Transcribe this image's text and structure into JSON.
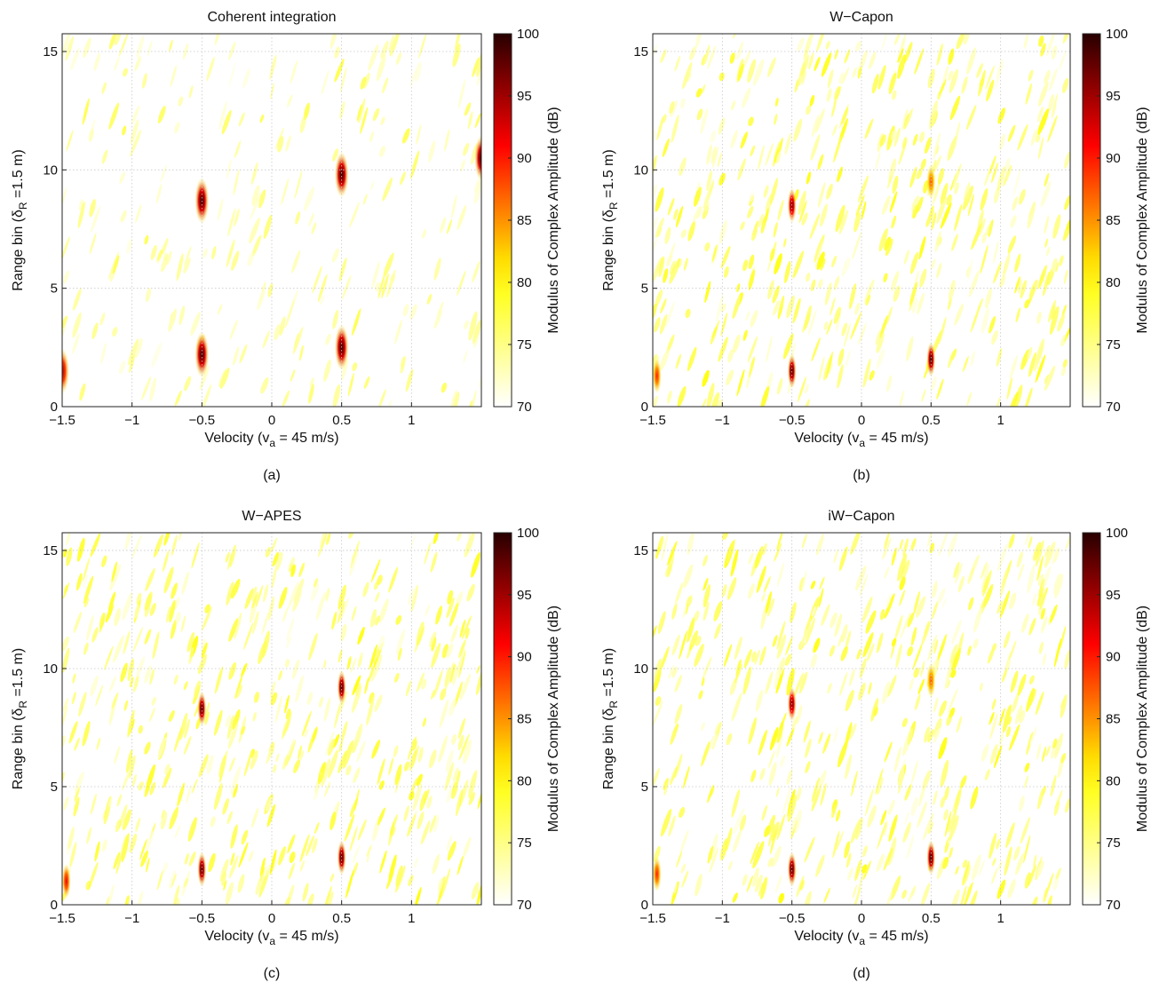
{
  "chart_data": [
    {
      "type": "heatmap",
      "panel_label": "(a)",
      "title": "Coherent integration",
      "xlabel": "Velocity (v",
      "xlabel_sub": "a",
      "xlabel_tail": " = 45 m/s)",
      "ylabel": "Range bin (δ",
      "ylabel_sub": "R",
      "ylabel_tail": " =1.5 m)",
      "xlim": [
        -1.5,
        1.5
      ],
      "ylim": [
        0,
        15.75
      ],
      "xticks": [
        -1.5,
        -1,
        -0.5,
        0,
        0.5,
        1
      ],
      "xtick_labels": [
        "−1.5",
        "−1",
        "−0.5",
        "0",
        "0.5",
        "1"
      ],
      "yticks": [
        0,
        5,
        10,
        15
      ],
      "ytick_labels": [
        "0",
        "5",
        "10",
        "15"
      ],
      "grid": true,
      "colorbar": {
        "label": "Modulus of Complex Amplitude (dB)",
        "range": [
          70,
          100
        ],
        "ticks": [
          "70",
          "75",
          "80",
          "85",
          "90",
          "95",
          "100"
        ]
      },
      "peaks": [
        {
          "x": -0.5,
          "y": 8.7,
          "level": 100
        },
        {
          "x": -0.5,
          "y": 2.2,
          "level": 100
        },
        {
          "x": 0.5,
          "y": 9.8,
          "level": 100
        },
        {
          "x": 0.5,
          "y": 2.5,
          "level": 100
        },
        {
          "x": 1.5,
          "y": 10.5,
          "level": 100
        },
        {
          "x": -1.5,
          "y": 1.5,
          "level": 95
        }
      ]
    },
    {
      "type": "heatmap",
      "panel_label": "(b)",
      "title": "W−Capon",
      "xlabel": "Velocity (v",
      "xlabel_sub": "a",
      "xlabel_tail": " = 45 m/s)",
      "ylabel": "Range bin (δ",
      "ylabel_sub": "R",
      "ylabel_tail": " =1.5 m)",
      "xlim": [
        -1.5,
        1.5
      ],
      "ylim": [
        0,
        15.75
      ],
      "xticks": [
        -1.5,
        -1,
        -0.5,
        0,
        0.5,
        1
      ],
      "xtick_labels": [
        "−1.5",
        "−1",
        "−0.5",
        "0",
        "0.5",
        "1"
      ],
      "yticks": [
        0,
        5,
        10,
        15
      ],
      "ytick_labels": [
        "0",
        "5",
        "10",
        "15"
      ],
      "grid": true,
      "colorbar": {
        "label": "Modulus of Complex Amplitude (dB)",
        "range": [
          70,
          100
        ],
        "ticks": [
          "70",
          "75",
          "80",
          "85",
          "90",
          "95",
          "100"
        ]
      },
      "peaks": [
        {
          "x": -0.5,
          "y": 8.5,
          "level": 98
        },
        {
          "x": -0.5,
          "y": 1.5,
          "level": 100
        },
        {
          "x": 0.5,
          "y": 9.5,
          "level": 88
        },
        {
          "x": 0.5,
          "y": 2.0,
          "level": 100
        },
        {
          "x": -1.47,
          "y": 1.3,
          "level": 90
        }
      ]
    },
    {
      "type": "heatmap",
      "panel_label": "(c)",
      "title": "W−APES",
      "xlabel": "Velocity (v",
      "xlabel_sub": "a",
      "xlabel_tail": " = 45 m/s)",
      "ylabel": "Range bin (δ",
      "ylabel_sub": "R",
      "ylabel_tail": " =1.5 m)",
      "xlim": [
        -1.5,
        1.5
      ],
      "ylim": [
        0,
        15.75
      ],
      "xticks": [
        -1.5,
        -1,
        -0.5,
        0,
        0.5,
        1
      ],
      "xtick_labels": [
        "−1.5",
        "−1",
        "−0.5",
        "0",
        "0.5",
        "1"
      ],
      "yticks": [
        0,
        5,
        10,
        15
      ],
      "ytick_labels": [
        "0",
        "5",
        "10",
        "15"
      ],
      "grid": true,
      "colorbar": {
        "label": "Modulus of Complex Amplitude (dB)",
        "range": [
          70,
          100
        ],
        "ticks": [
          "70",
          "75",
          "80",
          "85",
          "90",
          "95",
          "100"
        ]
      },
      "peaks": [
        {
          "x": -0.5,
          "y": 8.3,
          "level": 100
        },
        {
          "x": -0.5,
          "y": 1.5,
          "level": 100
        },
        {
          "x": 0.5,
          "y": 9.2,
          "level": 100
        },
        {
          "x": 0.5,
          "y": 2.0,
          "level": 100
        },
        {
          "x": -1.47,
          "y": 1.0,
          "level": 92
        }
      ]
    },
    {
      "type": "heatmap",
      "panel_label": "(d)",
      "title": "iW−Capon",
      "xlabel": "Velocity (v",
      "xlabel_sub": "a",
      "xlabel_tail": " = 45 m/s)",
      "ylabel": "Range bin (δ",
      "ylabel_sub": "R",
      "ylabel_tail": " =1.5 m)",
      "xlim": [
        -1.5,
        1.5
      ],
      "ylim": [
        0,
        15.75
      ],
      "xticks": [
        -1.5,
        -1,
        -0.5,
        0,
        0.5,
        1
      ],
      "xtick_labels": [
        "−1.5",
        "−1",
        "−0.5",
        "0",
        "0.5",
        "1"
      ],
      "yticks": [
        0,
        5,
        10,
        15
      ],
      "ytick_labels": [
        "0",
        "5",
        "10",
        "15"
      ],
      "grid": true,
      "colorbar": {
        "label": "Modulus of Complex Amplitude (dB)",
        "range": [
          70,
          100
        ],
        "ticks": [
          "70",
          "75",
          "80",
          "85",
          "90",
          "95",
          "100"
        ]
      },
      "peaks": [
        {
          "x": -0.5,
          "y": 8.5,
          "level": 98
        },
        {
          "x": -0.5,
          "y": 1.5,
          "level": 100
        },
        {
          "x": 0.5,
          "y": 9.5,
          "level": 88
        },
        {
          "x": 0.5,
          "y": 2.0,
          "level": 100
        },
        {
          "x": -1.47,
          "y": 1.3,
          "level": 90
        }
      ]
    }
  ]
}
